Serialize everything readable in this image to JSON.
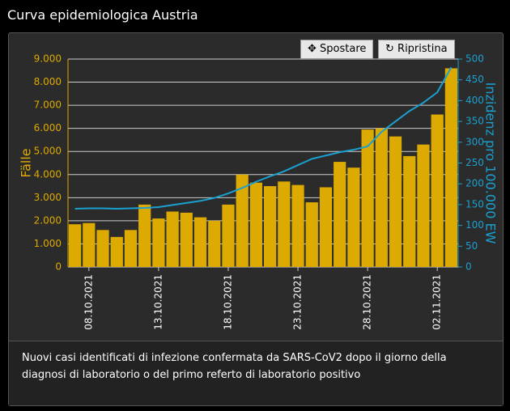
{
  "header": {
    "title": "Curva epidemiologica Austria"
  },
  "buttons": [
    "Spostare",
    "Ripristina"
  ],
  "chart_data": {
    "type": "bar-line",
    "categories": [
      null,
      "08.10.2021",
      null,
      null,
      null,
      null,
      "13.10.2021",
      null,
      null,
      null,
      null,
      "18.10.2021",
      null,
      null,
      null,
      null,
      "23.10.2021",
      null,
      null,
      null,
      null,
      "28.10.2021",
      null,
      null,
      null,
      null,
      "02.11.2021",
      null
    ],
    "series": [
      {
        "name": "Fälle",
        "type": "bar",
        "color": "#dcaa00",
        "values": [
          1850,
          1900,
          1600,
          1300,
          1600,
          2700,
          2100,
          2400,
          2350,
          2150,
          2000,
          2700,
          4000,
          3650,
          3500,
          3700,
          3550,
          2800,
          3450,
          4550,
          4300,
          5950,
          6000,
          5650,
          4800,
          5300,
          6600,
          8600
        ]
      },
      {
        "name": "Inzidenz pro 100.000 EW",
        "type": "line",
        "axis": "y2",
        "color": "#1aa0d0",
        "values": [
          140,
          141,
          141,
          140,
          141,
          142,
          144,
          149,
          154,
          159,
          166,
          177,
          190,
          205,
          218,
          230,
          245,
          260,
          268,
          276,
          282,
          290,
          325,
          350,
          375,
          395,
          420,
          480
        ]
      }
    ],
    "ylabel": "Fälle",
    "y2label": "Inzidenz pro 100.000 EW",
    "ylim": [
      0,
      9000
    ],
    "yticks": [
      0,
      {
        "value": 1000,
        "label": "1.000"
      },
      {
        "value": 2000,
        "label": "2.000"
      },
      {
        "value": 3000,
        "label": "3.000"
      },
      {
        "value": 4000,
        "label": "4.000"
      },
      {
        "value": 5000,
        "label": "5.000"
      },
      {
        "value": 6000,
        "label": "6.000"
      },
      {
        "value": 7000,
        "label": "7.000"
      },
      {
        "value": 8000,
        "label": "8.000"
      },
      {
        "value": 9000,
        "label": "9.000"
      }
    ],
    "y2lim": [
      0,
      500
    ],
    "y2ticks": [
      0,
      50,
      100,
      150,
      200,
      250,
      300,
      350,
      400,
      450,
      500
    ],
    "grid": true
  },
  "footer": {
    "text": "Nuovi casi identificati di infezione confermata da SARS-CoV2 dopo il giorno della diagnosi di laboratorio o del primo referto di laboratorio positivo"
  }
}
